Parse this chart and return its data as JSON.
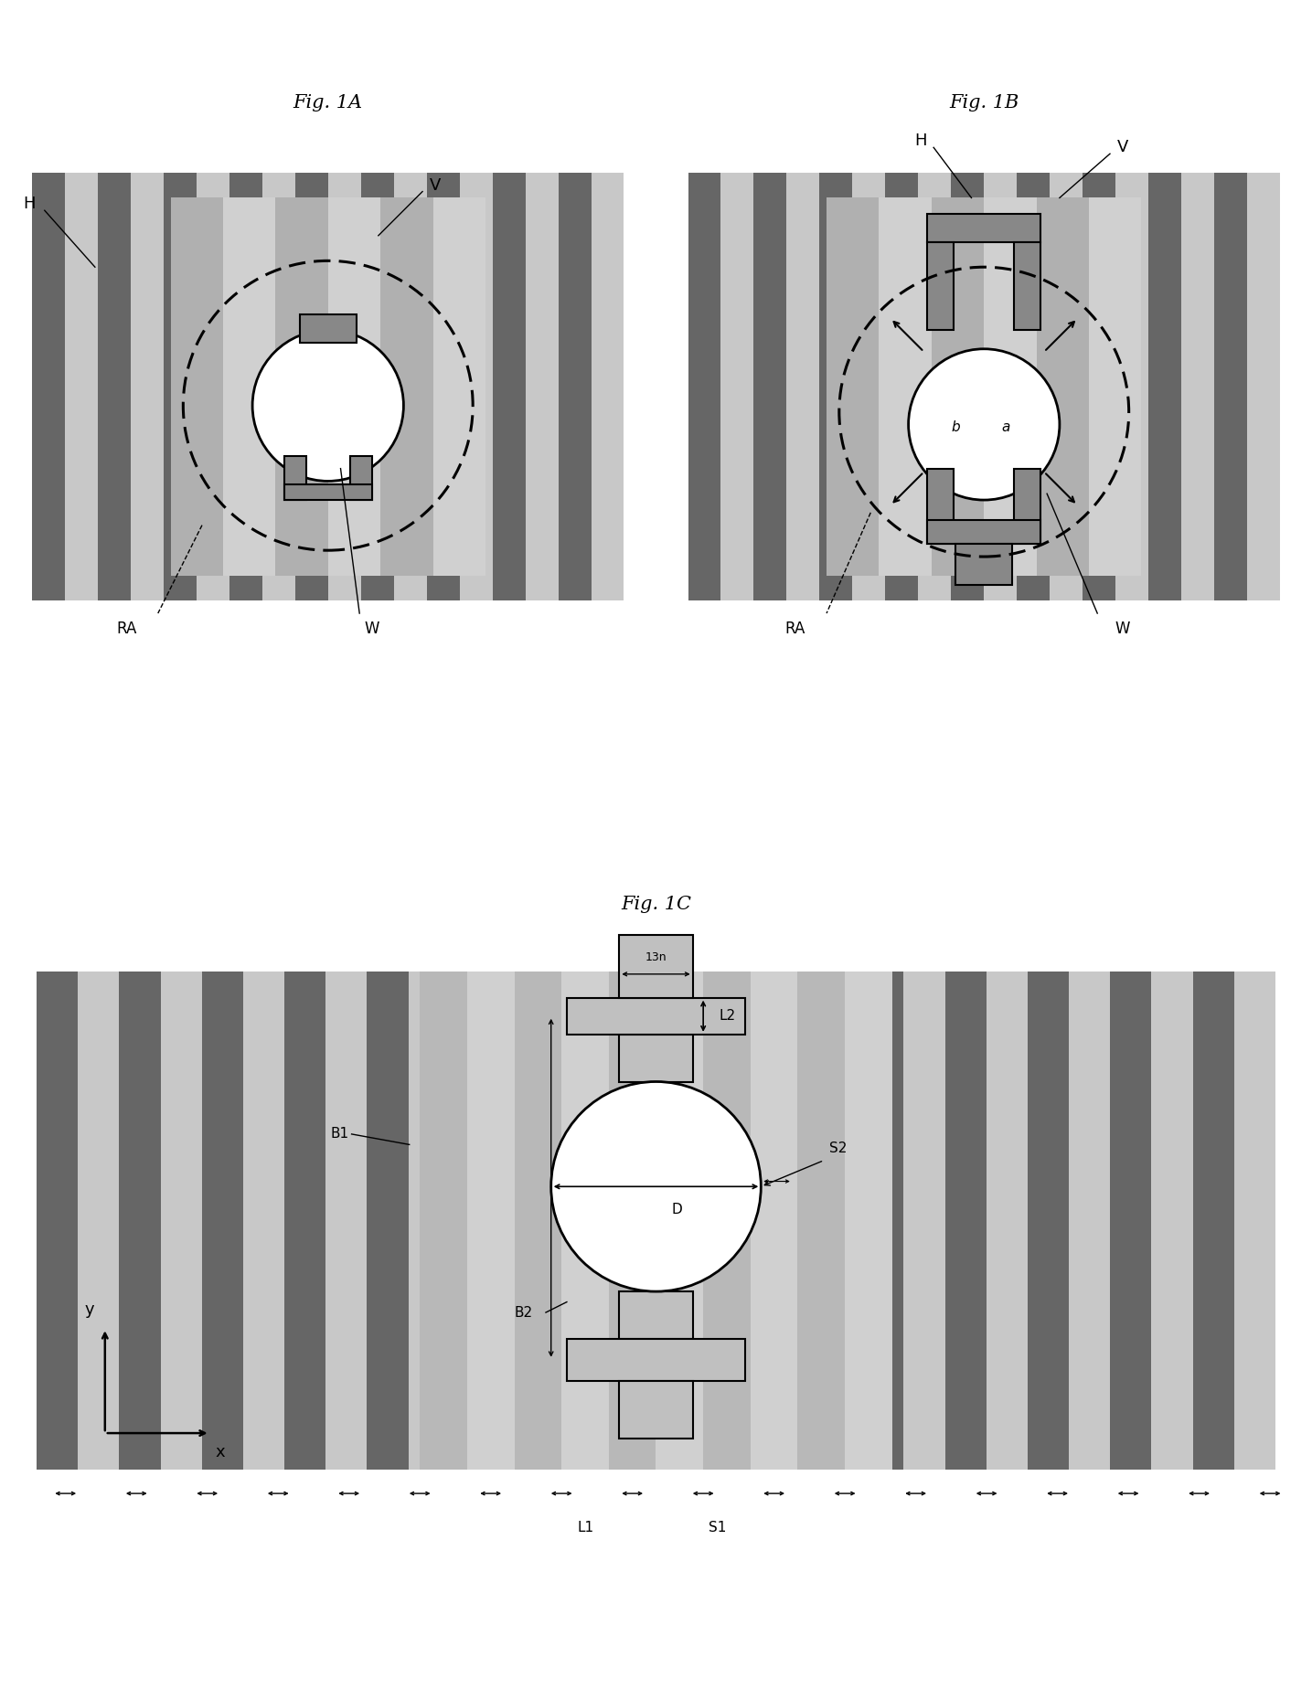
{
  "background_color": "#f5f5f0",
  "stripe_dark": "#666666",
  "stripe_med": "#aaaaaa",
  "stripe_light": "#d8d8d8",
  "center_fill": "#cccccc",
  "contact_fill": "#999999",
  "fig1A_title": "Fig. 1A",
  "fig1B_title": "Fig. 1B",
  "fig1C_title": "Fig. 1C"
}
